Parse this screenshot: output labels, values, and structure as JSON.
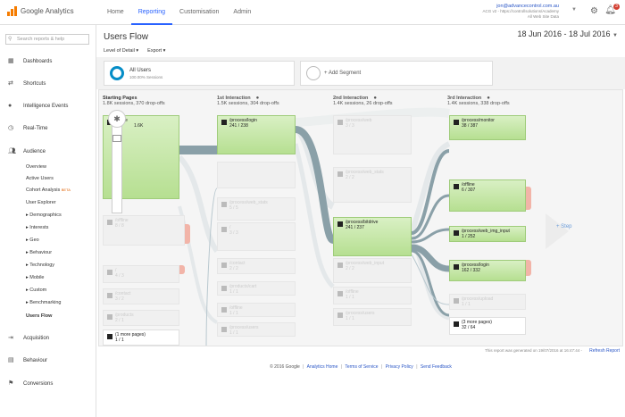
{
  "app": {
    "name": "Google Analytics"
  },
  "nav": {
    "tabs": [
      "Home",
      "Reporting",
      "Customisation",
      "Admin"
    ],
    "active": "Reporting"
  },
  "account": {
    "email": "jon@advancecontrol.com.au",
    "property": "ACG v2 - https://controllsolutions/Academy",
    "view": "All Web Site Data"
  },
  "notifications": {
    "count": "3"
  },
  "sidebar": {
    "search_placeholder": "Search reports & help",
    "top_items": [
      {
        "label": "Dashboards",
        "icon": "grid-icon"
      },
      {
        "label": "Shortcuts",
        "icon": "arrows-icon"
      },
      {
        "label": "Intelligence Events",
        "icon": "bulb-icon"
      },
      {
        "label": "Real-Time",
        "icon": "clock-icon"
      },
      {
        "label": "Audience",
        "icon": "people-icon"
      }
    ],
    "audience_sub": [
      "Overview",
      "Active Users",
      "Cohort Analysis",
      "User Explorer",
      "▸ Demographics",
      "▸ Interests",
      "▸ Geo",
      "▸ Behaviour",
      "▸ Technology",
      "▸ Mobile",
      "▸ Custom",
      "▸ Benchmarking",
      "Users Flow"
    ],
    "beta": "BETA",
    "bottom_items": [
      {
        "label": "Acquisition",
        "icon": "acquisition-icon"
      },
      {
        "label": "Behaviour",
        "icon": "behaviour-icon"
      },
      {
        "label": "Conversions",
        "icon": "flag-icon"
      }
    ]
  },
  "page": {
    "title": "Users Flow",
    "date_range": "18 Jun 2016 - 18 Jul 2016",
    "toolbar": {
      "level": "Level of Detail",
      "export": "Export"
    },
    "segments": {
      "all_users": "All Users",
      "all_users_sub": "100.00% Sessions",
      "add": "+ Add Segment"
    }
  },
  "flow": {
    "columns": [
      {
        "title": "Starting Pages",
        "sub": "1.8K sessions, 370 drop-offs"
      },
      {
        "title": "1st Interaction",
        "sub": "1.5K sessions, 304 drop-offs"
      },
      {
        "title": "2nd Interaction",
        "sub": "1.4K sessions, 26 drop-offs"
      },
      {
        "title": "3rd Interaction",
        "sub": "1.4K sessions, 338 drop-offs"
      }
    ],
    "start_nodes": [
      {
        "label": "/home",
        "value": "1.6K"
      },
      {
        "label": "/offline",
        "value": "8 / 8"
      },
      {
        "label": "/",
        "value": "4 / 3"
      },
      {
        "label": "/contact",
        "value": "3 / 2"
      },
      {
        "label": "/products",
        "value": "2 / 1"
      },
      {
        "label": "(1 more pages)",
        "value": "1 / 1"
      }
    ],
    "first_nodes": [
      {
        "label": "/process/login",
        "value": "241 / 238"
      },
      {
        "label": "/process/web_stats",
        "value": "5 / 5"
      },
      {
        "label": "/",
        "value": "3 / 3"
      },
      {
        "label": "/contact",
        "value": "2 / 2"
      },
      {
        "label": "/products/cart",
        "value": "1 / 1"
      },
      {
        "label": "/offline",
        "value": "1 / 1"
      },
      {
        "label": "/process/users",
        "value": "1 / 1"
      }
    ],
    "second_nodes": [
      {
        "label": "/process/web",
        "value": "3 / 3"
      },
      {
        "label": "/process/web_stats",
        "value": "2 / 2"
      },
      {
        "label": "/process/bitdrive",
        "value": "241 / 237"
      },
      {
        "label": "/process/web_input",
        "value": "2 / 2"
      },
      {
        "label": "/offline",
        "value": "1 / 1"
      },
      {
        "label": "/process/users",
        "value": "1 / 1"
      }
    ],
    "third_nodes": [
      {
        "label": "/process/monitor",
        "value": "38 / 387"
      },
      {
        "label": "/offline",
        "value": "6 / 307"
      },
      {
        "label": "/process/web_img_input",
        "value": "1 / 252"
      },
      {
        "label": "/process/login",
        "value": "162 / 332"
      },
      {
        "label": "/process/upload",
        "value": "1 / 1"
      },
      {
        "label": "(3 more pages)",
        "value": "32 / 64"
      }
    ],
    "step_link": "+ Step"
  },
  "report_note": "This report was generated on 19/07/2016 at 16:47:44 -",
  "refresh": "Refresh Report",
  "footer": {
    "copyright": "© 2016 Google",
    "links": [
      "Analytics Home",
      "Terms of Service",
      "Privacy Policy",
      "Send Feedback"
    ]
  },
  "colors": {
    "accent": "#2962ff",
    "node_green": "#b6df91",
    "flow_link": "#8aa0a8",
    "drop_off": "#f2b4a8"
  }
}
